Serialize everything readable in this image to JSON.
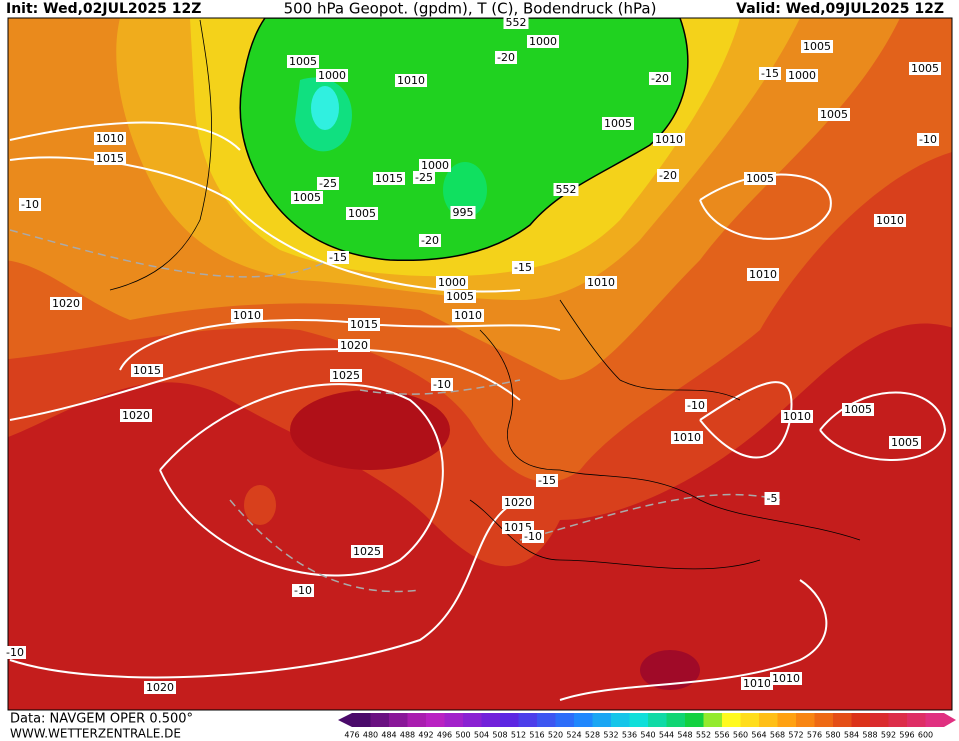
{
  "header": {
    "init": "Init: Wed,02JUL2025 12Z",
    "title": "500 hPa Geopot. (gpdm), T (C), Bodendruck (hPa)",
    "valid": "Valid: Wed,09JUL2025 12Z"
  },
  "footer": {
    "source": "Data: NAVGEM OPER 0.500°",
    "site": "WWW.WETTERZENTRALE.DE"
  },
  "colorbar": {
    "labels": [
      476,
      480,
      484,
      488,
      492,
      496,
      500,
      504,
      508,
      512,
      516,
      520,
      524,
      528,
      532,
      536,
      540,
      544,
      548,
      552,
      556,
      560,
      564,
      568,
      572,
      576,
      580,
      584,
      588,
      592,
      596,
      600
    ]
  },
  "map": {
    "labels": [
      "1005",
      "1000",
      "1010",
      "1000",
      "552",
      "1005",
      "1005",
      "1000",
      "-15",
      "1005",
      "-20",
      "-20",
      "1005",
      "1010",
      "1010",
      "1015",
      "-10",
      "-25",
      "1015",
      "-25",
      "1000",
      "1005",
      "1005",
      "995",
      "-20",
      "552",
      "-20",
      "1005",
      "-10",
      "1010",
      "-15",
      "-15",
      "1000",
      "1005",
      "1010",
      "1010",
      "1020",
      "1010",
      "1015",
      "1010",
      "1020",
      "1015",
      "1025",
      "-10",
      "-10",
      "1020",
      "1010",
      "1005",
      "1010",
      "1005",
      "-15",
      "-5",
      "1020",
      "1015",
      "-10",
      "1025",
      "-10",
      "-10",
      "1020",
      "1010",
      "1010"
    ]
  }
}
